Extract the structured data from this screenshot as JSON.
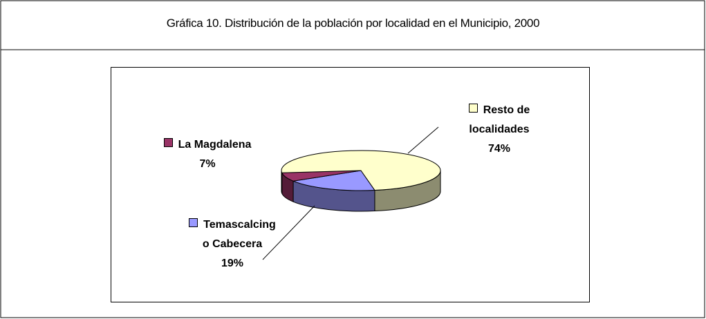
{
  "chart_data": {
    "type": "pie3d",
    "title": "Gráfica 10. Distribución de la población por localidad en el Municipio, 2000",
    "categories": [
      "Temascalcingo Cabecera",
      "La Magdalena",
      "Resto de localidades"
    ],
    "values": [
      19,
      7,
      74
    ],
    "value_labels": [
      "19%",
      "7%",
      "74%"
    ],
    "colors": [
      "#9999ff",
      "#993366",
      "#ffffcc"
    ]
  }
}
